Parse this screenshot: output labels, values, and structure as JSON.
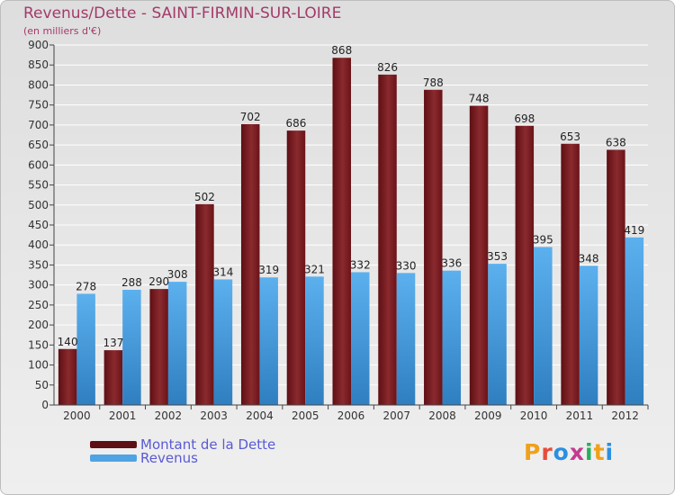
{
  "header": {
    "title": "Revenus/Dette - SAINT-FIRMIN-SUR-LOIRE",
    "subtitle": "(en milliers d'€)"
  },
  "legend": {
    "debt_label": "Montant de la Dette",
    "revenue_label": "Revenus"
  },
  "logo": {
    "text": "Proxiti",
    "colors": [
      "#f0a11a",
      "#e74c3c",
      "#2c8fe0",
      "#c53b8f",
      "#27ae60",
      "#f0a11a",
      "#2c8fe0"
    ]
  },
  "colors": {
    "debt": "#7a1a1f",
    "revenue": "#4fa3e3",
    "title": "#a33a6a"
  },
  "chart_data": {
    "type": "bar",
    "categories": [
      "2000",
      "2001",
      "2002",
      "2003",
      "2004",
      "2005",
      "2006",
      "2007",
      "2008",
      "2009",
      "2010",
      "2011",
      "2012"
    ],
    "series": [
      {
        "name": "Montant de la Dette",
        "values": [
          140,
          137,
          290,
          502,
          702,
          686,
          868,
          826,
          788,
          748,
          698,
          653,
          638
        ]
      },
      {
        "name": "Revenus",
        "values": [
          278,
          288,
          308,
          314,
          319,
          321,
          332,
          330,
          336,
          353,
          395,
          348,
          419
        ]
      }
    ],
    "yticks": [
      0,
      50,
      100,
      150,
      200,
      250,
      300,
      350,
      400,
      450,
      500,
      550,
      600,
      650,
      700,
      750,
      800,
      850,
      900
    ],
    "ylim": [
      0,
      900
    ],
    "grid": true,
    "legend_position": "bottom-left"
  }
}
